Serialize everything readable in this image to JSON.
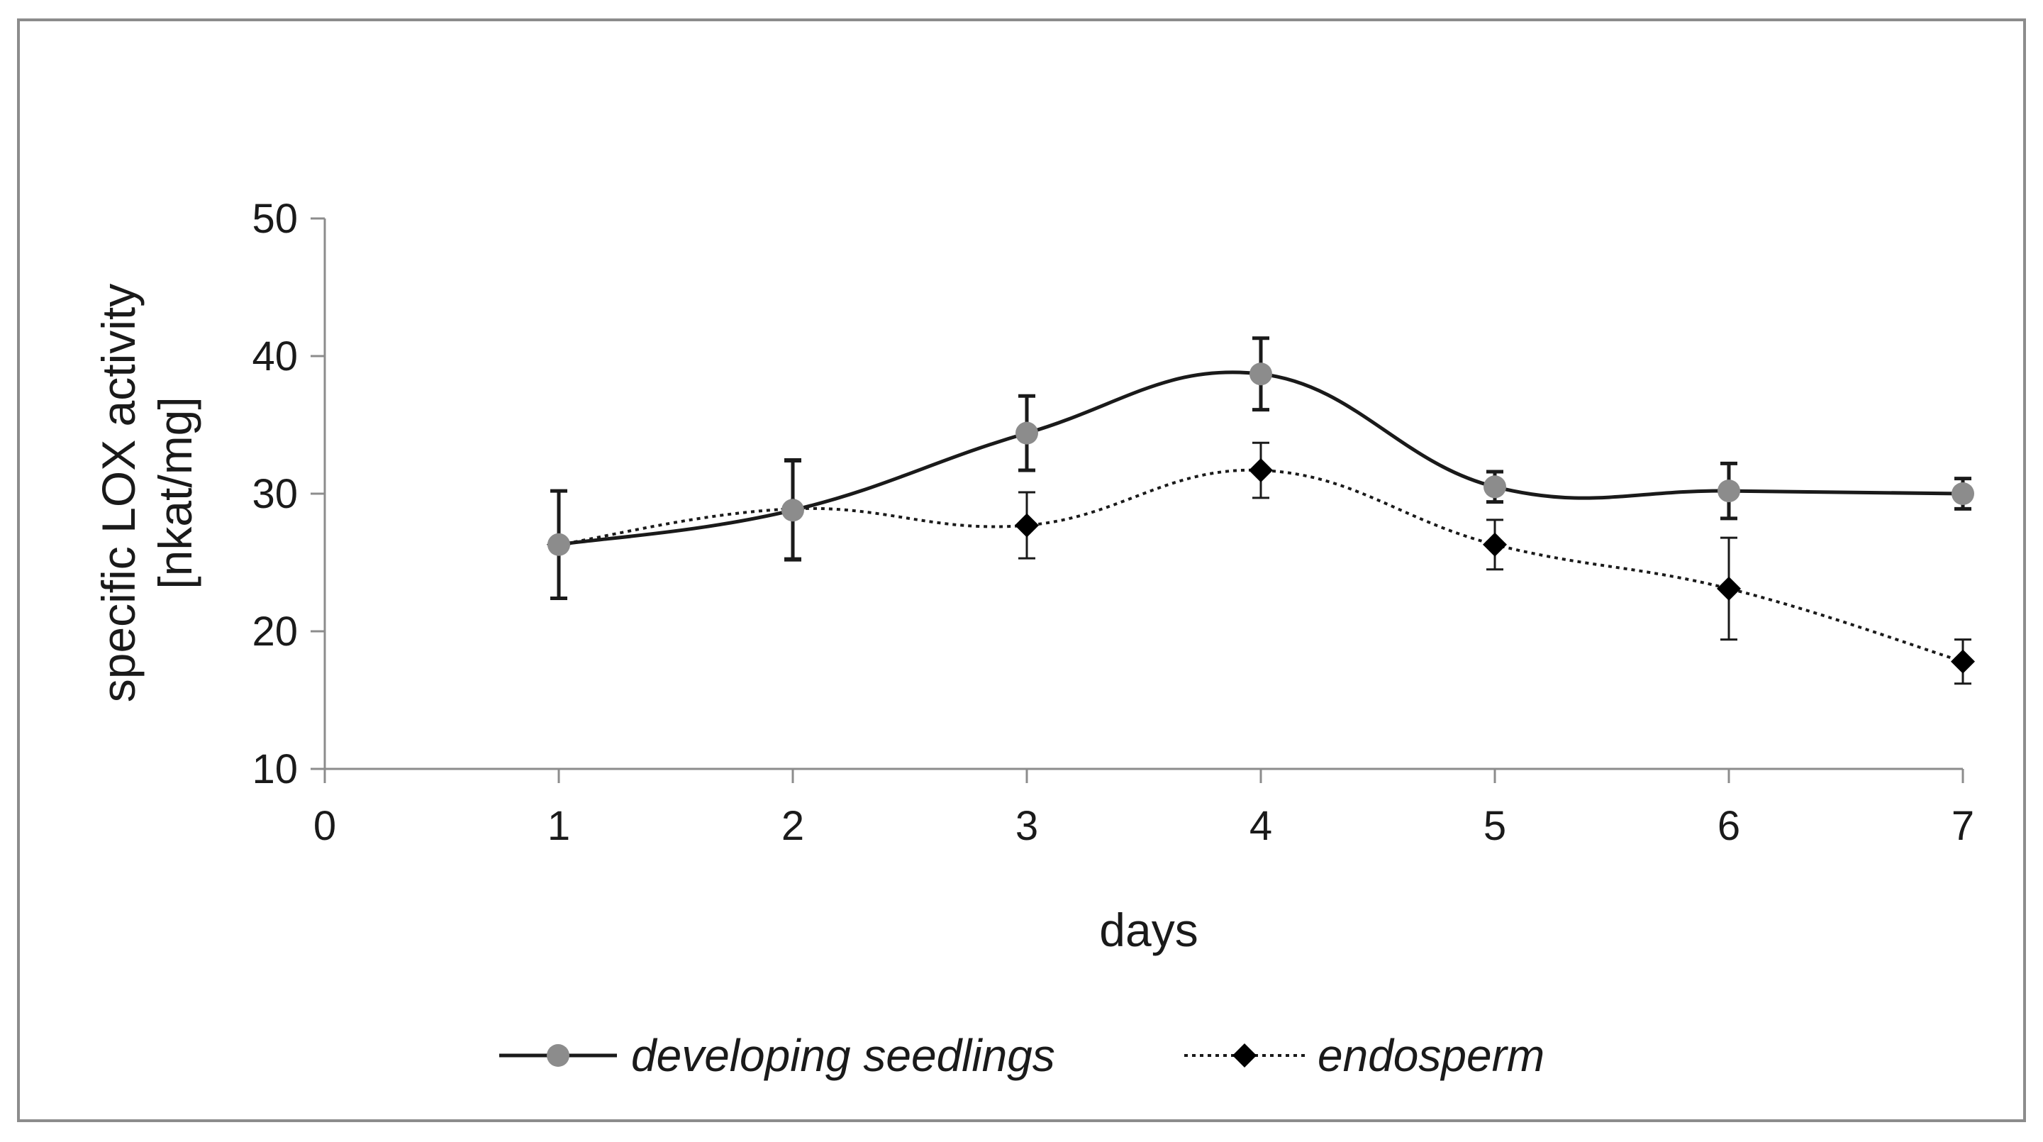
{
  "chart_data": {
    "type": "line",
    "title": "",
    "xlabel": "days",
    "ylabel_line1": "specific LOX activity",
    "ylabel_line2": "[nkat/mg]",
    "xlim": [
      0,
      7
    ],
    "ylim": [
      10,
      50
    ],
    "xticks": [
      0,
      1,
      2,
      3,
      4,
      5,
      6,
      7
    ],
    "yticks": [
      10,
      20,
      30,
      40,
      50
    ],
    "x_tick_labels": [
      "0",
      "1",
      "2",
      "3",
      "4",
      "5",
      "6",
      "7"
    ],
    "y_tick_labels": [
      "10",
      "20",
      "30",
      "40",
      "50"
    ],
    "grid": false,
    "legend_position": "bottom",
    "series": [
      {
        "name": "developing seedlings",
        "line": "solid",
        "smooth": true,
        "color": "#1a1a1a",
        "marker": "circle",
        "marker_color": "#8c8c8c",
        "x": [
          1,
          2,
          3,
          4,
          5,
          6,
          7
        ],
        "y": [
          26.3,
          28.8,
          34.4,
          38.7,
          30.5,
          30.2,
          30.0
        ],
        "error": [
          3.9,
          3.6,
          2.7,
          2.6,
          1.1,
          2.0,
          1.1
        ]
      },
      {
        "name": "endosperm",
        "line": "dotted",
        "smooth": true,
        "color": "#1a1a1a",
        "marker": "diamond",
        "marker_color": "#000000",
        "x": [
          1,
          2,
          3,
          4,
          5,
          6,
          7
        ],
        "y": [
          26.3,
          28.9,
          27.7,
          31.7,
          26.3,
          23.1,
          17.8
        ],
        "error": [
          3.9,
          3.6,
          2.4,
          2.0,
          1.8,
          3.7,
          1.6
        ]
      }
    ]
  }
}
